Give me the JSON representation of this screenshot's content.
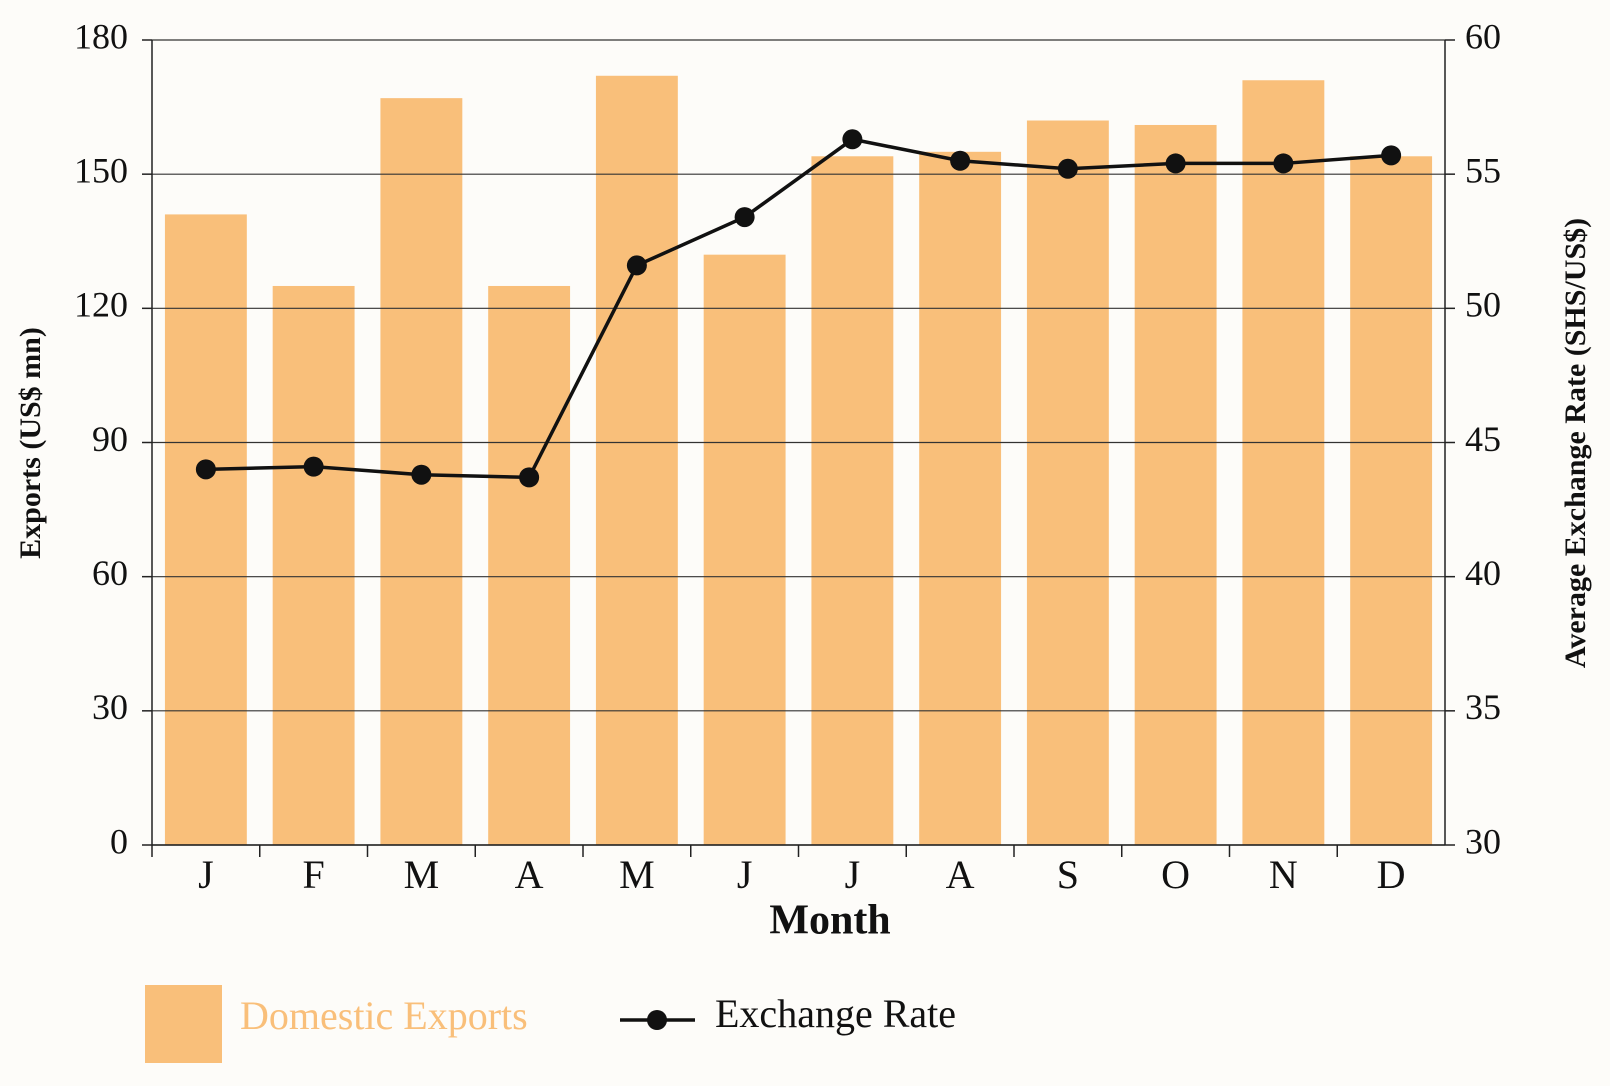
{
  "chart_data": {
    "type": "bar",
    "x_label": "Month",
    "y_label": "Exports (US$ mn)",
    "y2_label": "Average Exchange Rate (SHS/US$)",
    "categories": [
      "J",
      "F",
      "M",
      "A",
      "M",
      "J",
      "J",
      "A",
      "S",
      "O",
      "N",
      "D"
    ],
    "series": [
      {
        "name": "Domestic Exports",
        "type": "bar",
        "color": "#f9bf7a",
        "values": [
          141,
          125,
          167,
          125,
          172,
          132,
          154,
          155,
          162,
          161,
          171,
          154
        ]
      },
      {
        "name": "Exchange Rate",
        "type": "line",
        "axis": "y2",
        "color": "#111111",
        "values": [
          44.0,
          44.1,
          43.8,
          43.7,
          51.6,
          53.4,
          56.3,
          55.5,
          55.2,
          55.4,
          55.4,
          55.7
        ]
      }
    ],
    "ylim": [
      0,
      180
    ],
    "yticks": [
      0,
      30,
      60,
      90,
      120,
      150,
      180
    ],
    "y2lim": [
      30,
      60
    ],
    "y2ticks": [
      30,
      35,
      40,
      45,
      50,
      55,
      60
    ],
    "grid": true
  }
}
